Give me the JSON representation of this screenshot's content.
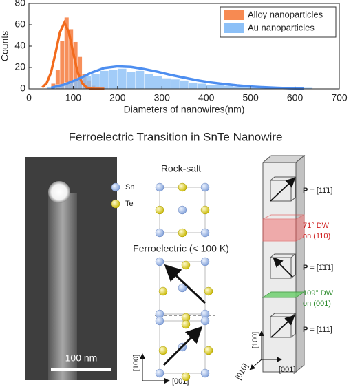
{
  "chart_data": {
    "type": "histogram",
    "xlabel": "Diameters of nanowires(nm)",
    "ylabel": "Counts",
    "xlim": [
      0,
      700
    ],
    "xticks": [
      0,
      100,
      200,
      300,
      400,
      500,
      600,
      700
    ],
    "ylim": [
      0,
      80
    ],
    "yticks": [
      0,
      20,
      40,
      60,
      80
    ],
    "legend": "upper right",
    "series": [
      {
        "name": "Alloy nanoparticles",
        "color": "#f78a52",
        "fit_color": "#f26b1d",
        "bins": [
          50,
          60,
          70,
          80,
          90,
          100,
          110,
          120,
          130,
          140,
          150,
          160
        ],
        "values": [
          5,
          18,
          45,
          67,
          56,
          44,
          30,
          14,
          8,
          3,
          2
        ],
        "fit_x": [
          30,
          40,
          50,
          60,
          70,
          80,
          90,
          100,
          110,
          120,
          130,
          140,
          150,
          160,
          170
        ],
        "fit_values": [
          1.3,
          5.3,
          15.5,
          33.5,
          53,
          62,
          53,
          33.5,
          15.5,
          5.3,
          1.3,
          0.2,
          0,
          0,
          0
        ]
      },
      {
        "name": "Au nanoparticles",
        "color": "#8cc0f7",
        "fit_color": "#4d8ef0",
        "bins": [
          40,
          60,
          80,
          100,
          120,
          140,
          160,
          180,
          200,
          220,
          240,
          260,
          280,
          300,
          320,
          340,
          360,
          380,
          400,
          420,
          440,
          460,
          480,
          500,
          520,
          540,
          560,
          580,
          600,
          620,
          640
        ],
        "values": [
          2,
          4,
          6,
          9,
          12,
          14,
          17,
          18,
          19,
          16,
          17,
          14,
          12,
          10,
          9,
          8,
          6,
          5,
          4,
          4,
          3,
          2,
          2,
          1,
          1,
          1,
          1,
          1,
          1,
          1
        ],
        "fit_x": [
          50,
          80,
          110,
          140,
          170,
          200,
          230,
          260,
          290,
          320,
          350,
          380,
          410,
          440,
          470,
          500,
          530,
          560,
          590,
          620
        ],
        "fit_values": [
          1,
          4,
          9,
          15,
          19.5,
          21,
          20.5,
          18.5,
          16,
          13,
          10.5,
          8,
          6,
          4.5,
          3.2,
          2.2,
          1.5,
          1,
          0.6,
          0.4
        ]
      }
    ]
  },
  "figure": {
    "title": "Ferroelectric Transition in SnTe Nanowire",
    "scale_bar": "100 nm",
    "atoms": [
      "Sn",
      "Te"
    ],
    "rock_salt": "Rock-salt",
    "ferroelectric": "Ferroelectric (< 100 K)",
    "mid_axes": [
      "[100]",
      "[001]"
    ],
    "polarizations": [
      {
        "symbol": "P",
        "value": "= [11̄1]"
      },
      {
        "symbol": "P",
        "value": "= [1̄1̄1]"
      },
      {
        "symbol": "P",
        "value": "= [111]"
      }
    ],
    "walls": [
      {
        "line1": "71° DW",
        "line2": "on (110)"
      },
      {
        "line1": "109° DW",
        "line2": "on (001)"
      }
    ],
    "right_axes": [
      "[100]",
      "[010]",
      "[001]"
    ]
  }
}
